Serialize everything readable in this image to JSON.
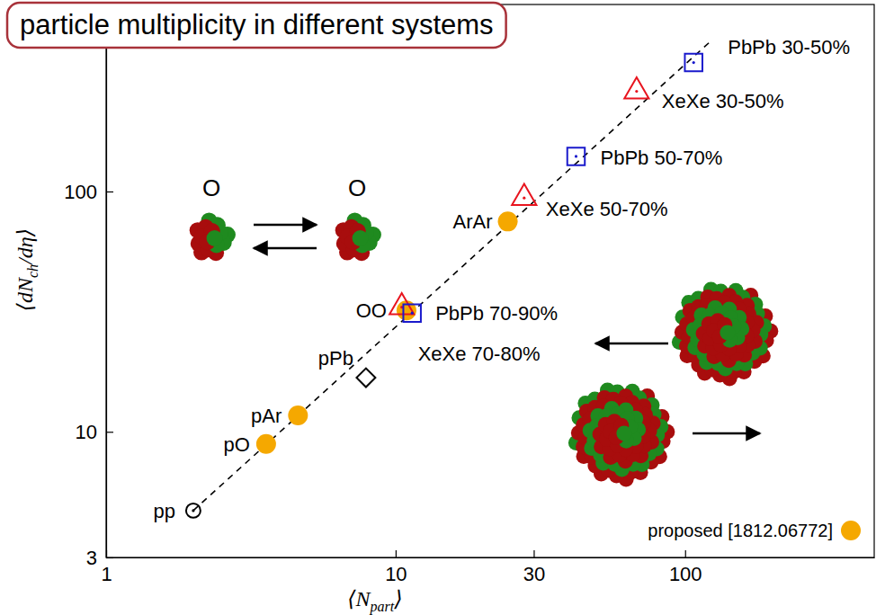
{
  "chart_data": {
    "type": "scatter",
    "title": "particle multiplicity in different systems",
    "xlabel": [
      "⟨N",
      "part",
      "⟩"
    ],
    "ylabel": [
      "⟨dN",
      "ch",
      "/dη⟩"
    ],
    "log": true,
    "xlim": [
      1,
      450
    ],
    "ylim": [
      3,
      600
    ],
    "xticks": [
      1,
      10,
      30,
      100
    ],
    "yticks": [
      3,
      10,
      100
    ],
    "legend": "lower right",
    "annotations": [
      "O",
      "O"
    ],
    "series": [
      {
        "type": "line",
        "line_style": "dashed",
        "color": "#000000",
        "x": [
          2,
          122
        ],
        "values": [
          4.7,
          420
        ]
      },
      {
        "name": "proposed [1812.06772]",
        "type": "scatter",
        "color": "#f5a800",
        "marker": "circle",
        "x": [
          3.57,
          4.6,
          10.9,
          24.4
        ],
        "values": [
          8.9,
          11.7,
          32,
          75
        ],
        "labels": [
          "pO",
          "pAr",
          "OO",
          "ArAr"
        ]
      },
      {
        "type": "scatter",
        "color": "#000000",
        "marker": "open-circle",
        "x": [
          2
        ],
        "values": [
          4.7
        ],
        "labels": [
          "pp"
        ]
      },
      {
        "type": "scatter",
        "color": "#000000",
        "marker": "open-diamond",
        "x": [
          7.9
        ],
        "values": [
          16.8
        ],
        "labels": [
          "pPb"
        ]
      },
      {
        "type": "scatter",
        "color": "#e8141e",
        "marker": "open-triangle",
        "x": [
          10.5,
          27.8,
          68
        ],
        "values": [
          33,
          94,
          261
        ],
        "labels": [
          "XeXe 70-80%",
          "XeXe 50-70%",
          "XeXe 30-50%"
        ]
      },
      {
        "type": "scatter",
        "color": "#1a1acc",
        "marker": "open-square",
        "x": [
          11.4,
          42,
          107
        ],
        "values": [
          31.2,
          140,
          344
        ],
        "labels": [
          "PbPb 70-90%",
          "PbPb 50-70%",
          "PbPb 30-50%"
        ]
      }
    ]
  }
}
